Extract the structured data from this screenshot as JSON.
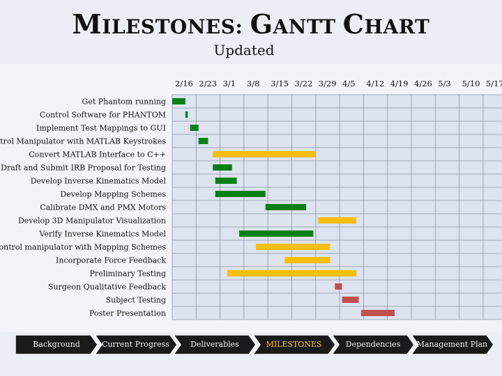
{
  "slide": {
    "title_first": "M",
    "title_rest": "ILESTONES",
    "title_colon": ": ",
    "title_g": "G",
    "title_antt": "ANTT ",
    "title_c": "C",
    "title_hart": "HART",
    "subtitle": "Updated"
  },
  "colors": {
    "current_progress": "#0a7f16",
    "deliverables": "#f8be0e",
    "upcoming": "#c0504d",
    "grid_fill": "#dde3ef",
    "grid_line": "#8c94a4",
    "nav_bg": "#1a1a1a"
  },
  "chart_data": {
    "type": "gantt",
    "dates": [
      "2/16",
      "2/23",
      "3/1",
      "3/8",
      "3/15",
      "3/22",
      "3/29",
      "4/5",
      "4/12",
      "4/19",
      "4/26",
      "5/3",
      "5/10",
      "5/17"
    ],
    "tasks": [
      {
        "name": "Get Phantom running",
        "start": 0.0,
        "end": 0.55,
        "color": "green"
      },
      {
        "name": "Control Software for PHANTOM",
        "start": 0.55,
        "end": 0.65,
        "color": "green"
      },
      {
        "name": "Implement Test Mappings to GUI",
        "start": 0.75,
        "end": 1.1,
        "color": "green"
      },
      {
        "name": "Control Manipulator with MATLAB Keystrokes",
        "start": 1.1,
        "end": 1.5,
        "color": "green"
      },
      {
        "name": "Convert MATLAB Interface to C++",
        "start": 1.7,
        "end": 6.0,
        "color": "yellow"
      },
      {
        "name": "Draft and Submit IRB Proposal for Testing",
        "start": 1.7,
        "end": 2.5,
        "color": "green"
      },
      {
        "name": "Develop Inverse Kinematics Model",
        "start": 1.8,
        "end": 2.7,
        "color": "green"
      },
      {
        "name": "Develop Mapping Schemes",
        "start": 1.8,
        "end": 3.9,
        "color": "green"
      },
      {
        "name": "Calibrate DMX and PMX Motors",
        "start": 3.9,
        "end": 5.6,
        "color": "green"
      },
      {
        "name": "Develop 3D Manipulator Visualization",
        "start": 6.1,
        "end": 7.7,
        "color": "yellow"
      },
      {
        "name": "Verify Inverse Kinematics Model",
        "start": 2.8,
        "end": 5.9,
        "color": "green"
      },
      {
        "name": "Control manipulator with Mapping Schemes",
        "start": 3.5,
        "end": 6.6,
        "color": "yellow"
      },
      {
        "name": "Incorporate Force Feedback",
        "start": 4.7,
        "end": 6.6,
        "color": "yellow"
      },
      {
        "name": "Preliminary Testing",
        "start": 2.3,
        "end": 7.7,
        "color": "yellow"
      },
      {
        "name": "Surgeon Qualitative Feedback",
        "start": 6.8,
        "end": 7.1,
        "color": "red"
      },
      {
        "name": "Subject Testing",
        "start": 7.1,
        "end": 7.8,
        "color": "red"
      },
      {
        "name": "Poster Presentation",
        "start": 7.9,
        "end": 9.3,
        "color": "red"
      }
    ]
  },
  "nav": {
    "items": [
      {
        "label": "Background",
        "active": false
      },
      {
        "label": "Current Progress",
        "active": false
      },
      {
        "label": "Deliverables",
        "active": false
      },
      {
        "label": "MILESTONES",
        "active": true
      },
      {
        "label": "Dependencies",
        "active": false
      },
      {
        "label": "Management Plan",
        "active": false
      }
    ]
  }
}
